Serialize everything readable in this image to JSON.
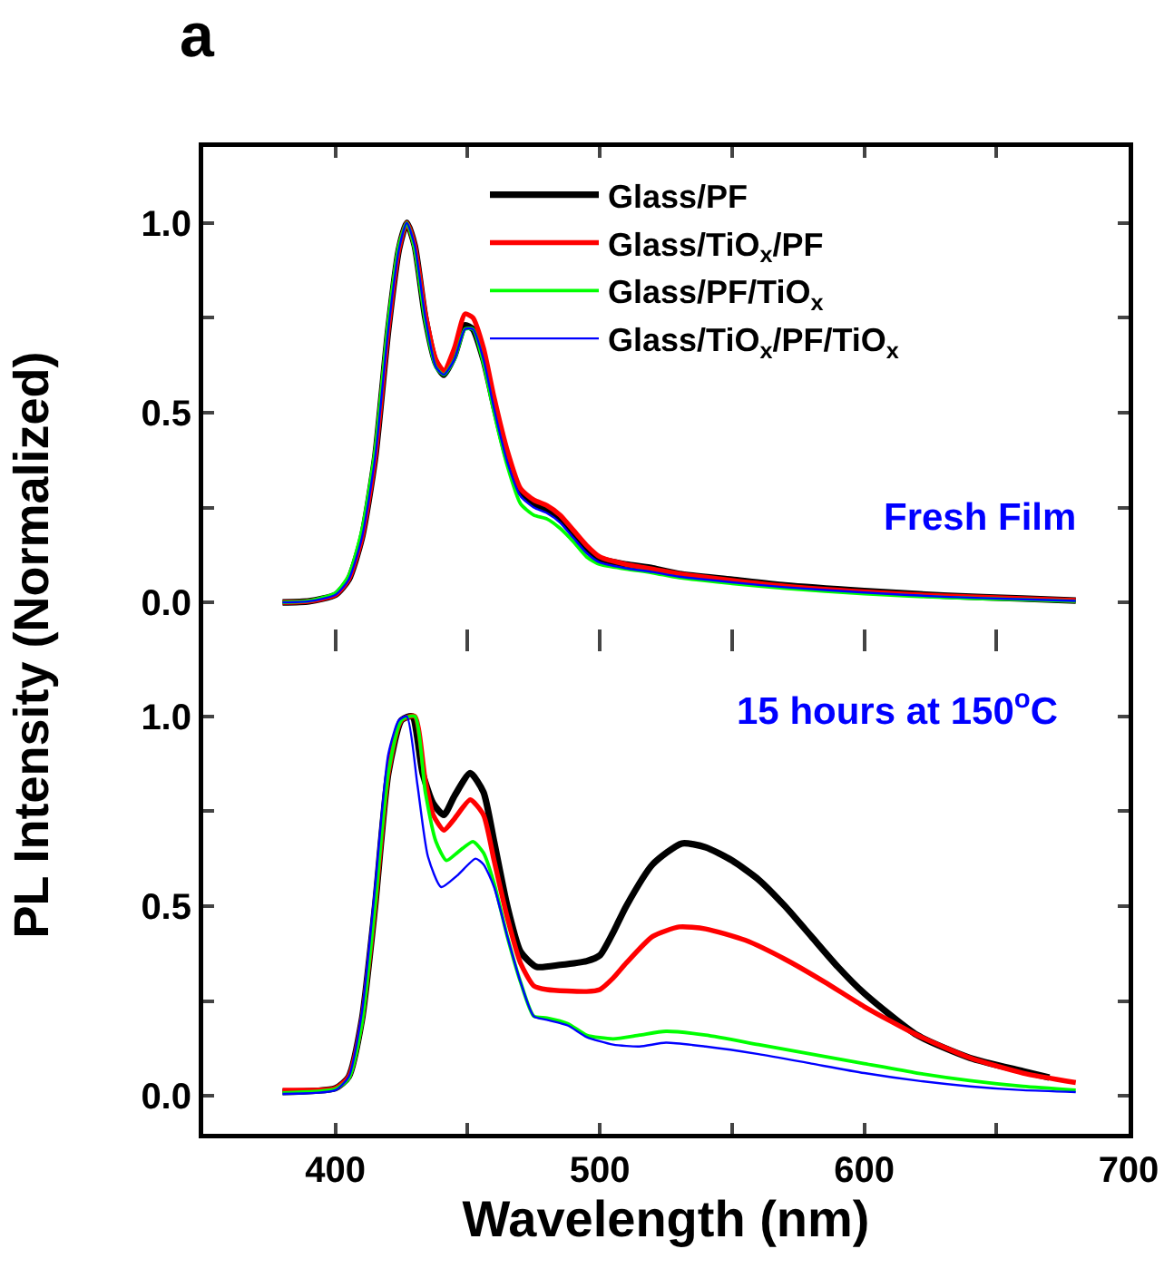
{
  "chart_data": [
    {
      "type": "line",
      "annotations": [
        "a",
        "Fresh Film"
      ],
      "ylabel": "PL Intensity (Normalized)",
      "legend": "top right",
      "tick_labels": "y",
      "xlim": [
        350,
        700
      ],
      "xticks": [
        {
          "value": 400,
          "label": null
        },
        {
          "value": 450,
          "label": null
        },
        {
          "value": 500,
          "label": null
        },
        {
          "value": 550,
          "label": null
        },
        {
          "value": 600,
          "label": null
        },
        {
          "value": 650,
          "label": null
        },
        {
          "value": 700,
          "label": null
        }
      ],
      "ylim": [
        -0.1,
        1.2
      ],
      "yticks": [
        {
          "value": 0,
          "label": "0.0"
        },
        {
          "value": 0.25,
          "label": null
        },
        {
          "value": 0.5,
          "label": "0.5"
        },
        {
          "value": 0.75,
          "label": null
        },
        {
          "value": 1,
          "label": "1.0"
        }
      ],
      "series": [
        {
          "name": "Glass/PF",
          "color": "#000000",
          "x": [
            380,
            390,
            400,
            405,
            410,
            415,
            420,
            424,
            427,
            430,
            434,
            438,
            441,
            445,
            449,
            452,
            456,
            460,
            465,
            470,
            475,
            480,
            485,
            490,
            495,
            500,
            510,
            520,
            530,
            550,
            570,
            600,
            630,
            660,
            680
          ],
          "values": [
            0,
            0.003,
            0.02,
            0.06,
            0.17,
            0.38,
            0.72,
            0.93,
            1.0,
            0.94,
            0.75,
            0.63,
            0.6,
            0.65,
            0.73,
            0.72,
            0.64,
            0.52,
            0.38,
            0.29,
            0.26,
            0.245,
            0.22,
            0.18,
            0.14,
            0.115,
            0.1,
            0.09,
            0.075,
            0.06,
            0.045,
            0.03,
            0.018,
            0.01,
            0.005
          ]
        },
        {
          "name": "Glass/TiO$_{x}$/PF",
          "color": "#ff0000",
          "x": [
            380,
            390,
            400,
            405,
            410,
            415,
            420,
            424,
            427,
            430,
            434,
            438,
            441,
            445,
            449,
            452,
            456,
            460,
            465,
            470,
            475,
            480,
            485,
            490,
            495,
            500,
            510,
            520,
            530,
            550,
            570,
            600,
            630,
            660,
            680
          ],
          "values": [
            0,
            0.003,
            0.02,
            0.06,
            0.17,
            0.38,
            0.72,
            0.93,
            1.0,
            0.94,
            0.76,
            0.64,
            0.61,
            0.67,
            0.76,
            0.75,
            0.67,
            0.54,
            0.4,
            0.3,
            0.27,
            0.255,
            0.23,
            0.19,
            0.15,
            0.12,
            0.1,
            0.088,
            0.075,
            0.058,
            0.043,
            0.028,
            0.017,
            0.01,
            0.005
          ]
        },
        {
          "name": "Glass/PF/TiO$_{x}$",
          "color": "#00ff00",
          "x": [
            380,
            390,
            400,
            405,
            410,
            415,
            420,
            424,
            427,
            430,
            434,
            438,
            441,
            445,
            449,
            452,
            456,
            460,
            465,
            470,
            475,
            480,
            485,
            490,
            495,
            500,
            510,
            520,
            530,
            550,
            570,
            600,
            630,
            660,
            680
          ],
          "values": [
            0,
            0.004,
            0.025,
            0.07,
            0.19,
            0.4,
            0.74,
            0.94,
            1.0,
            0.93,
            0.74,
            0.62,
            0.6,
            0.64,
            0.72,
            0.72,
            0.63,
            0.5,
            0.36,
            0.26,
            0.23,
            0.22,
            0.195,
            0.16,
            0.12,
            0.1,
            0.088,
            0.078,
            0.065,
            0.05,
            0.037,
            0.023,
            0.013,
            0.007,
            0.003
          ]
        },
        {
          "name": "Glass/TiO$_{x}$/PF/TiO$_{x}$",
          "color": "#0000ff",
          "x": [
            380,
            390,
            400,
            405,
            410,
            415,
            420,
            424,
            427,
            430,
            434,
            438,
            441,
            445,
            449,
            452,
            456,
            460,
            465,
            470,
            475,
            480,
            485,
            490,
            495,
            500,
            510,
            520,
            530,
            550,
            570,
            600,
            630,
            660,
            680
          ],
          "values": [
            0,
            0.003,
            0.02,
            0.06,
            0.17,
            0.38,
            0.72,
            0.93,
            1.0,
            0.94,
            0.75,
            0.62,
            0.6,
            0.64,
            0.72,
            0.72,
            0.64,
            0.51,
            0.37,
            0.28,
            0.25,
            0.235,
            0.21,
            0.17,
            0.13,
            0.105,
            0.09,
            0.08,
            0.068,
            0.053,
            0.04,
            0.026,
            0.015,
            0.008,
            0.004
          ]
        }
      ]
    },
    {
      "type": "line",
      "annotations": [
        "15 hours at 150$^{o}$C"
      ],
      "xlabel": "Wavelength (nm)",
      "legend": false,
      "xlim": [
        350,
        700
      ],
      "xticks": [
        {
          "value": 400,
          "label": "400"
        },
        {
          "value": 450,
          "label": null
        },
        {
          "value": 500,
          "label": "500"
        },
        {
          "value": 550,
          "label": null
        },
        {
          "value": 600,
          "label": "600"
        },
        {
          "value": 650,
          "label": null
        },
        {
          "value": 700,
          "label": "700"
        }
      ],
      "ylim": [
        -0.1,
        1.2
      ],
      "yticks": [
        {
          "value": 0,
          "label": "0.0"
        },
        {
          "value": 0.25,
          "label": null
        },
        {
          "value": 0.5,
          "label": "0.5"
        },
        {
          "value": 0.75,
          "label": null
        },
        {
          "value": 1,
          "label": "1.0"
        }
      ],
      "series": [
        {
          "color": "#000000",
          "x": [
            380,
            400,
            405,
            410,
            415,
            420,
            425,
            429,
            433,
            437,
            441,
            445,
            451,
            456,
            460,
            465,
            470,
            476,
            485,
            495,
            500,
            505,
            510,
            520,
            531,
            540,
            550,
            560,
            570,
            580,
            590,
            600,
            620,
            640,
            660,
            670
          ],
          "values": [
            0.01,
            0.02,
            0.05,
            0.2,
            0.5,
            0.85,
            0.99,
            1.0,
            0.85,
            0.77,
            0.74,
            0.79,
            0.85,
            0.8,
            0.67,
            0.5,
            0.38,
            0.34,
            0.345,
            0.355,
            0.37,
            0.43,
            0.5,
            0.61,
            0.665,
            0.655,
            0.62,
            0.57,
            0.5,
            0.42,
            0.34,
            0.27,
            0.16,
            0.1,
            0.065,
            0.048
          ]
        },
        {
          "color": "#ff0000",
          "x": [
            380,
            400,
            405,
            410,
            415,
            420,
            425,
            430,
            434,
            437,
            441,
            445,
            451,
            456,
            460,
            465,
            470,
            475,
            480,
            495,
            500,
            505,
            510,
            520,
            530,
            540,
            555,
            570,
            585,
            600,
            620,
            640,
            660,
            680
          ],
          "values": [
            0.015,
            0.02,
            0.05,
            0.2,
            0.5,
            0.85,
            0.99,
            1.0,
            0.83,
            0.74,
            0.7,
            0.73,
            0.78,
            0.74,
            0.62,
            0.47,
            0.35,
            0.29,
            0.28,
            0.275,
            0.28,
            0.31,
            0.35,
            0.42,
            0.445,
            0.44,
            0.41,
            0.36,
            0.3,
            0.235,
            0.16,
            0.1,
            0.06,
            0.035
          ]
        },
        {
          "color": "#00ff00",
          "x": [
            380,
            400,
            405,
            410,
            415,
            420,
            425,
            430,
            434,
            438,
            442,
            446,
            452,
            456,
            460,
            465,
            470,
            475,
            480,
            488,
            495,
            505,
            515,
            525,
            540,
            560,
            580,
            600,
            620,
            640,
            660,
            680
          ],
          "values": [
            0.008,
            0.018,
            0.045,
            0.19,
            0.5,
            0.85,
            0.99,
            1.0,
            0.8,
            0.67,
            0.62,
            0.64,
            0.67,
            0.64,
            0.56,
            0.42,
            0.3,
            0.21,
            0.205,
            0.19,
            0.16,
            0.15,
            0.16,
            0.17,
            0.16,
            0.135,
            0.11,
            0.085,
            0.06,
            0.04,
            0.025,
            0.015
          ]
        },
        {
          "color": "#0000ff",
          "x": [
            380,
            400,
            405,
            410,
            415,
            420,
            424,
            427,
            431,
            435,
            440,
            446,
            453,
            456,
            460,
            465,
            470,
            475,
            480,
            488,
            495,
            505,
            515,
            525,
            540,
            560,
            580,
            600,
            620,
            640,
            660,
            680
          ],
          "values": [
            0.005,
            0.015,
            0.05,
            0.22,
            0.55,
            0.9,
            0.99,
            1.0,
            0.82,
            0.63,
            0.55,
            0.58,
            0.625,
            0.61,
            0.55,
            0.42,
            0.3,
            0.21,
            0.2,
            0.185,
            0.155,
            0.135,
            0.13,
            0.14,
            0.13,
            0.11,
            0.085,
            0.06,
            0.04,
            0.025,
            0.015,
            0.01
          ]
        }
      ]
    }
  ]
}
